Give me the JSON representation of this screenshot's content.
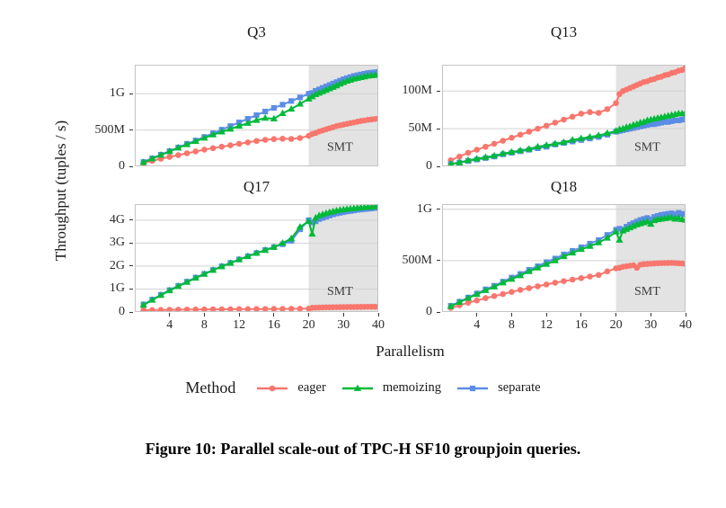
{
  "figure": {
    "y_axis_label": "Throughput (tuples / s)",
    "x_axis_label": "Parallelism",
    "smt_label": "SMT",
    "x_ticks": [
      4,
      8,
      12,
      16,
      20,
      30,
      40
    ],
    "x_scale": {
      "break": 20,
      "max": 40,
      "full_units": 28
    },
    "parallelism": [
      1,
      2,
      3,
      4,
      5,
      6,
      7,
      8,
      9,
      10,
      11,
      12,
      13,
      14,
      15,
      16,
      17,
      18,
      19,
      20,
      21,
      22,
      23,
      24,
      25,
      26,
      27,
      28,
      29,
      30,
      31,
      32,
      33,
      34,
      35,
      36,
      37,
      38,
      39,
      40
    ]
  },
  "colors": {
    "eager": "#F8766D",
    "memoizing": "#00BA38",
    "separate": "#5C8DE6",
    "smt_band": "#E3E3E3",
    "gridline": "#D2D2D2",
    "panel_border": "#C4C4C4",
    "tick_text": "#2B2B2B",
    "smt_text": "#3A3A3A"
  },
  "legend": {
    "title": "Method",
    "items": [
      {
        "label": "eager",
        "marker": "circle",
        "color_key": "eager"
      },
      {
        "label": "memoizing",
        "marker": "triangle",
        "color_key": "memoizing"
      },
      {
        "label": "separate",
        "marker": "square",
        "color_key": "separate"
      }
    ]
  },
  "caption": "Figure 10: Parallel scale-out of TPC-H SF10 groupjoin queries.",
  "chart_data": [
    {
      "type": "line",
      "title": "Q3",
      "unit": "tuples per second, values in millions",
      "ylim": [
        0,
        1400
      ],
      "y_ticks": [
        {
          "v": 0,
          "label": "0"
        },
        {
          "v": 500,
          "label": "500M"
        },
        {
          "v": 1000,
          "label": "1G"
        }
      ],
      "smt_start": 20,
      "show_x_axis": false,
      "series": [
        {
          "name": "eager",
          "values": [
            45,
            75,
            105,
            130,
            155,
            180,
            205,
            230,
            250,
            270,
            290,
            310,
            330,
            350,
            365,
            375,
            380,
            378,
            390,
            420,
            445,
            460,
            480,
            495,
            510,
            525,
            540,
            555,
            565,
            575,
            585,
            595,
            605,
            615,
            625,
            632,
            640,
            646,
            652,
            660
          ]
        },
        {
          "name": "memoizing",
          "values": [
            55,
            105,
            155,
            205,
            255,
            300,
            345,
            390,
            435,
            475,
            515,
            555,
            595,
            635,
            665,
            655,
            730,
            790,
            860,
            930,
            960,
            990,
            1010,
            1030,
            1050,
            1070,
            1090,
            1110,
            1135,
            1155,
            1175,
            1190,
            1205,
            1215,
            1225,
            1235,
            1245,
            1250,
            1255,
            1260
          ]
        },
        {
          "name": "separate",
          "values": [
            60,
            110,
            160,
            210,
            260,
            310,
            355,
            405,
            455,
            505,
            555,
            605,
            655,
            705,
            755,
            805,
            850,
            900,
            950,
            1000,
            1010,
            1040,
            1060,
            1080,
            1100,
            1120,
            1140,
            1160,
            1180,
            1200,
            1215,
            1230,
            1245,
            1255,
            1265,
            1275,
            1285,
            1290,
            1295,
            1300
          ]
        }
      ]
    },
    {
      "type": "line",
      "title": "Q13",
      "unit": "tuples per second, values in millions",
      "ylim": [
        0,
        135
      ],
      "y_ticks": [
        {
          "v": 0,
          "label": "0"
        },
        {
          "v": 50,
          "label": "50M"
        },
        {
          "v": 100,
          "label": "100M"
        }
      ],
      "smt_start": 20,
      "show_x_axis": false,
      "series": [
        {
          "name": "eager",
          "values": [
            8,
            13,
            18,
            22,
            26,
            30,
            34,
            38,
            42,
            46,
            50,
            54,
            58,
            62,
            66,
            70,
            72,
            71,
            76,
            84,
            96,
            100,
            102,
            104,
            106,
            108,
            110,
            112,
            113,
            115,
            116,
            118,
            119,
            121,
            122,
            124,
            125,
            127,
            128,
            131
          ]
        },
        {
          "name": "memoizing",
          "values": [
            3,
            5,
            8,
            10,
            12,
            14,
            17,
            19,
            21,
            23,
            26,
            28,
            30,
            32,
            35,
            37,
            39,
            41,
            44,
            47,
            49,
            50,
            52,
            53,
            55,
            56,
            58,
            59,
            61,
            62,
            63,
            64,
            65,
            66,
            67,
            68,
            69,
            70,
            70,
            71
          ]
        },
        {
          "name": "separate",
          "values": [
            3,
            5,
            7,
            9,
            11,
            13,
            16,
            18,
            20,
            22,
            24,
            26,
            29,
            31,
            33,
            35,
            37,
            39,
            42,
            46,
            47,
            48,
            49,
            50,
            51,
            52,
            53,
            54,
            55,
            56,
            56,
            57,
            58,
            59,
            59,
            60,
            61,
            61,
            62,
            63
          ]
        }
      ]
    },
    {
      "type": "line",
      "title": "Q17",
      "unit": "tuples per second, values in millions",
      "ylim": [
        0,
        4700
      ],
      "y_ticks": [
        {
          "v": 0,
          "label": "0"
        },
        {
          "v": 1000,
          "label": "1G"
        },
        {
          "v": 2000,
          "label": "2G"
        },
        {
          "v": 3000,
          "label": "3G"
        },
        {
          "v": 4000,
          "label": "4G"
        }
      ],
      "smt_start": 20,
      "show_x_axis": true,
      "series": [
        {
          "name": "eager",
          "values": [
            80,
            85,
            90,
            95,
            100,
            105,
            110,
            112,
            115,
            118,
            120,
            123,
            125,
            128,
            130,
            133,
            135,
            138,
            140,
            145,
            185,
            190,
            195,
            200,
            203,
            206,
            209,
            211,
            213,
            215,
            217,
            219,
            220,
            222,
            224,
            225,
            227,
            228,
            229,
            230
          ]
        },
        {
          "name": "memoizing",
          "values": [
            300,
            520,
            730,
            930,
            1120,
            1300,
            1480,
            1650,
            1820,
            1980,
            2130,
            2280,
            2420,
            2560,
            2690,
            2820,
            3000,
            3200,
            3700,
            3950,
            3400,
            4100,
            4200,
            4250,
            4300,
            4340,
            4380,
            4410,
            4440,
            4460,
            4480,
            4500,
            4515,
            4530,
            4545,
            4555,
            4565,
            4575,
            4585,
            4600
          ]
        },
        {
          "name": "separate",
          "values": [
            330,
            540,
            750,
            950,
            1140,
            1320,
            1500,
            1660,
            1830,
            1990,
            2140,
            2290,
            2430,
            2570,
            2700,
            2830,
            2950,
            3100,
            3600,
            4000,
            3900,
            3950,
            4050,
            4100,
            4150,
            4200,
            4250,
            4290,
            4320,
            4350,
            4380,
            4400,
            4425,
            4450,
            4465,
            4480,
            4495,
            4510,
            4530,
            4550
          ]
        }
      ]
    },
    {
      "type": "line",
      "title": "Q18",
      "unit": "tuples per second, values in millions",
      "ylim": [
        0,
        1050
      ],
      "y_ticks": [
        {
          "v": 0,
          "label": "0"
        },
        {
          "v": 500,
          "label": "500M"
        },
        {
          "v": 1000,
          "label": "1G"
        }
      ],
      "smt_start": 20,
      "show_x_axis": true,
      "series": [
        {
          "name": "eager",
          "values": [
            40,
            65,
            90,
            112,
            135,
            155,
            175,
            195,
            215,
            232,
            250,
            268,
            285,
            300,
            315,
            330,
            345,
            360,
            395,
            425,
            430,
            440,
            445,
            450,
            455,
            430,
            460,
            465,
            468,
            470,
            472,
            474,
            475,
            476,
            477,
            478,
            476,
            474,
            472,
            468
          ]
        },
        {
          "name": "memoizing",
          "values": [
            55,
            95,
            135,
            172,
            210,
            245,
            285,
            320,
            355,
            395,
            430,
            465,
            500,
            540,
            575,
            610,
            640,
            675,
            720,
            780,
            700,
            790,
            805,
            820,
            835,
            850,
            860,
            870,
            880,
            855,
            890,
            900,
            905,
            910,
            915,
            920,
            905,
            915,
            900,
            895
          ]
        },
        {
          "name": "separate",
          "values": [
            60,
            100,
            140,
            180,
            220,
            255,
            295,
            335,
            370,
            410,
            445,
            485,
            520,
            560,
            595,
            630,
            665,
            700,
            750,
            800,
            810,
            800,
            830,
            850,
            865,
            880,
            895,
            905,
            915,
            900,
            925,
            935,
            945,
            950,
            955,
            960,
            950,
            965,
            955,
            950
          ]
        }
      ]
    }
  ]
}
